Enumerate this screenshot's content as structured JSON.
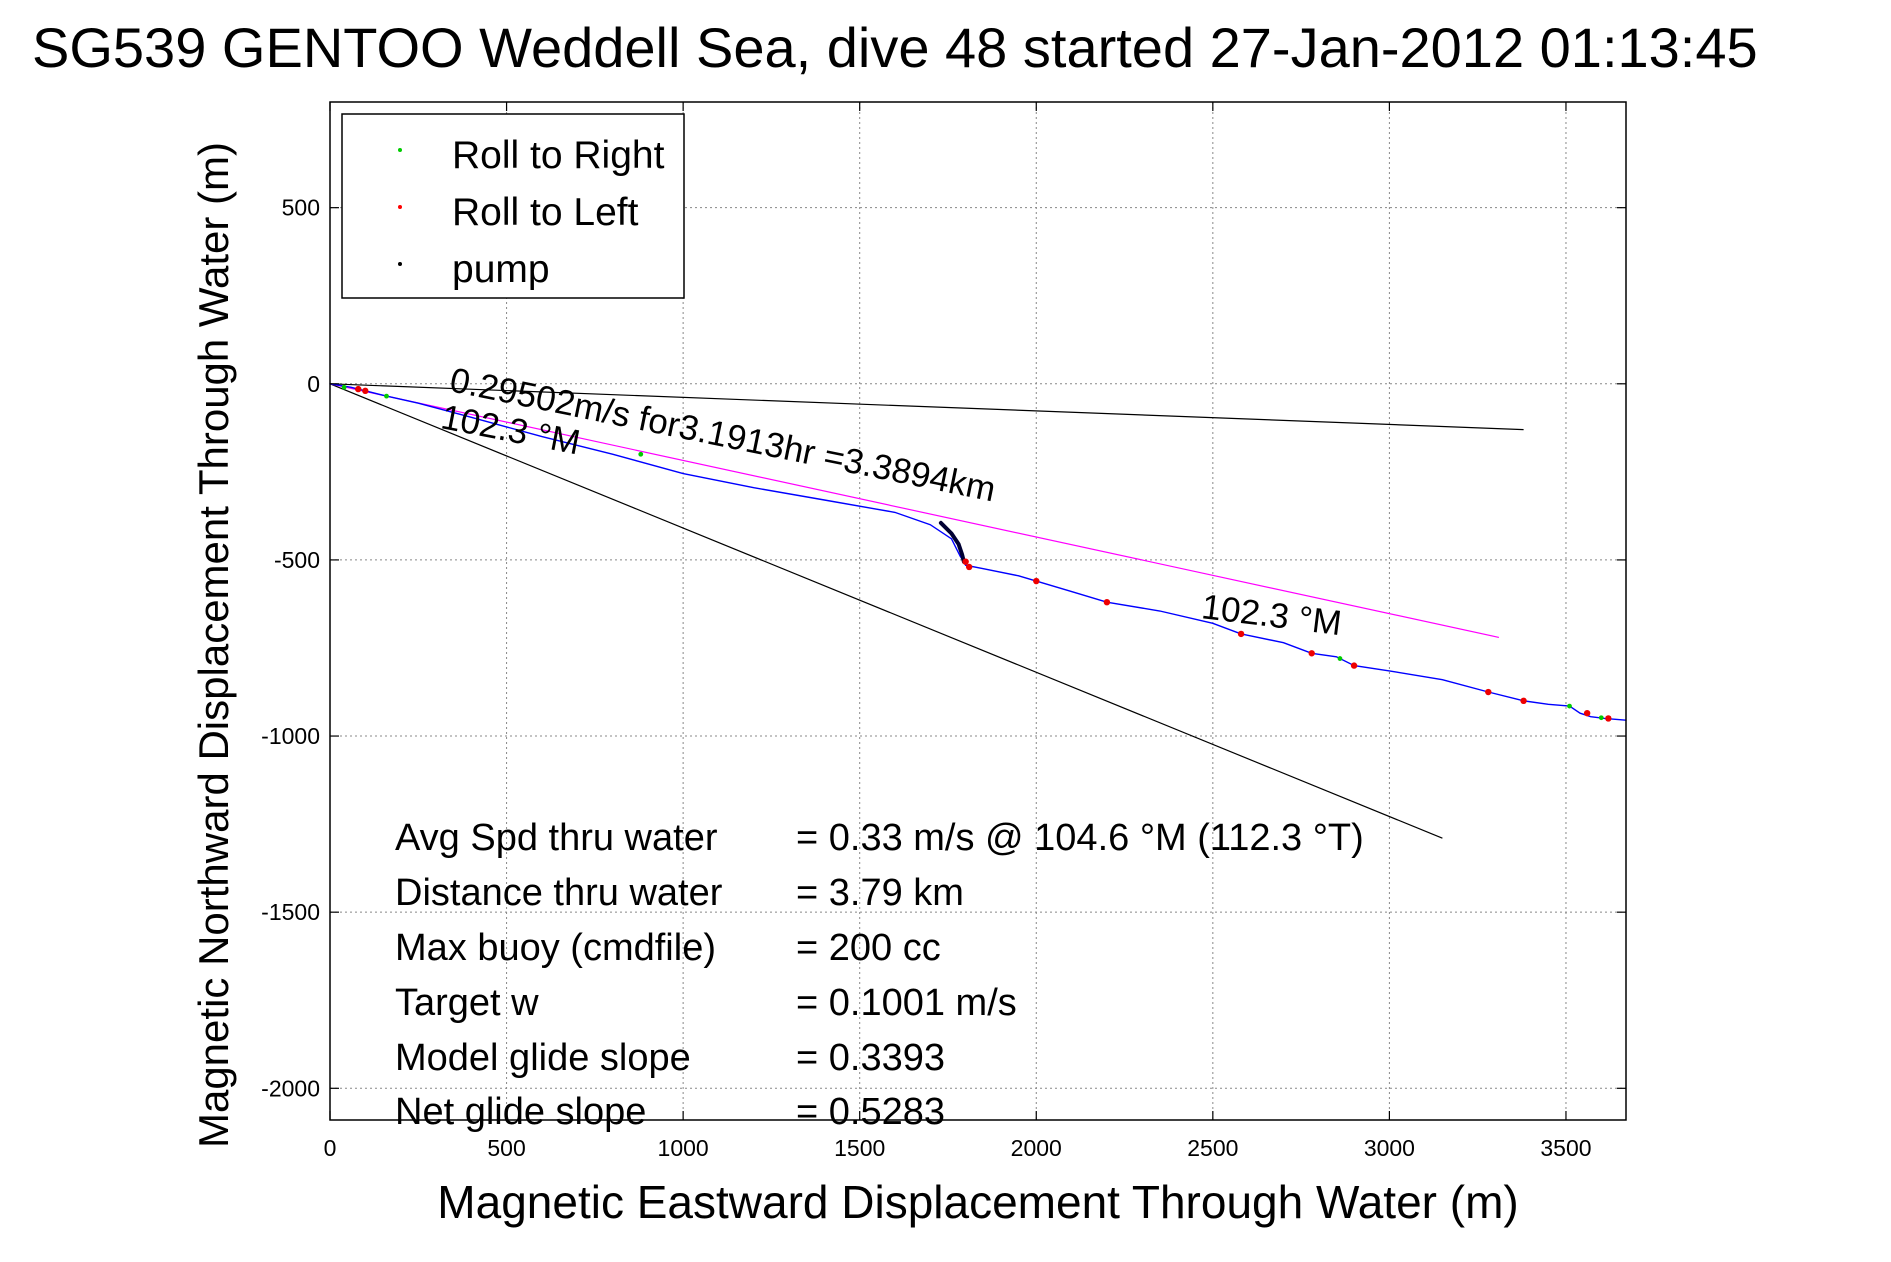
{
  "chart_data": {
    "type": "line",
    "title": "SG539 GENTOO Weddell Sea, dive 48 started 27-Jan-2012 01:13:45",
    "xlabel": "Magnetic Eastward Displacement Through Water (m)",
    "ylabel": "Magnetic Northward Displacement Through Water (m)",
    "xlim": [
      0,
      3670
    ],
    "ylim": [
      -2090,
      800
    ],
    "xticks": [
      0,
      500,
      1000,
      1500,
      2000,
      2500,
      3000,
      3500
    ],
    "yticks": [
      500,
      0,
      -500,
      -1000,
      -1500,
      -2000
    ],
    "xtick_labels": [
      "0",
      "500",
      "1000",
      "1500",
      "2000",
      "2500",
      "3000",
      "3500"
    ],
    "ytick_labels": [
      "500",
      "0",
      "-500",
      "-1000",
      "-1500",
      "-2000"
    ],
    "grid": true,
    "legend": {
      "placement": "top-left",
      "entries": [
        {
          "label": "Roll to Right",
          "color": "#00cc00"
        },
        {
          "label": "Roll to Left",
          "color": "#ff0000"
        },
        {
          "label": "pump",
          "color": "#000000"
        }
      ]
    },
    "series": [
      {
        "kind": "track",
        "color": "#0000ff",
        "x": [
          0,
          60,
          100,
          160,
          250,
          400,
          600,
          800,
          1000,
          1200,
          1400,
          1600,
          1700,
          1760,
          1775,
          1785,
          1795,
          1800,
          1850,
          1950,
          2000,
          2100,
          2200,
          2350,
          2500,
          2580,
          2700,
          2780,
          2850,
          2900,
          3000,
          3150,
          3280,
          3380,
          3450,
          3510,
          3540,
          3570,
          3610,
          3670
        ],
        "y": [
          0,
          -10,
          -20,
          -35,
          -55,
          -95,
          -150,
          -200,
          -255,
          -295,
          -330,
          -365,
          -400,
          -440,
          -470,
          -490,
          -505,
          -515,
          -525,
          -545,
          -560,
          -590,
          -620,
          -645,
          -680,
          -710,
          -735,
          -765,
          -775,
          -800,
          -815,
          -840,
          -875,
          -900,
          -910,
          -915,
          -935,
          -945,
          -950,
          -955
        ]
      },
      {
        "kind": "pump-segment",
        "color": "#000033",
        "x": [
          1730,
          1760,
          1780,
          1790,
          1795
        ],
        "y": [
          -395,
          -425,
          -455,
          -485,
          -505
        ]
      }
    ],
    "markers": {
      "roll_to_right": {
        "x": [
          40,
          160,
          880,
          2860,
          3510,
          3600
        ],
        "y": [
          -10,
          -35,
          -200,
          -780,
          -915,
          -948
        ]
      },
      "roll_to_left": {
        "x": [
          80,
          100,
          1800,
          1810,
          2000,
          2200,
          2580,
          2780,
          2900,
          3280,
          3380,
          3560,
          3620
        ],
        "y": [
          -15,
          -20,
          -505,
          -520,
          -560,
          -620,
          -710,
          -765,
          -800,
          -875,
          -900,
          -935,
          -950
        ]
      }
    },
    "reference_lines": [
      {
        "color": "#000000",
        "x": [
          0,
          3380
        ],
        "y": [
          0,
          -130
        ]
      },
      {
        "color": "#000000",
        "x": [
          0,
          3150
        ],
        "y": [
          0,
          -1290
        ]
      },
      {
        "color": "#ff00ff",
        "x": [
          0,
          3310
        ],
        "y": [
          0,
          -720
        ]
      }
    ],
    "annotations": [
      {
        "text": "0.29502m/s for3.1913hr =3.3894km",
        "x": 335,
        "y": -20,
        "rotation_deg": 11.5
      },
      {
        "text": "102.3 °M",
        "x": 310,
        "y": -125,
        "rotation_deg": 11
      },
      {
        "text": "102.3 °M",
        "x": 2465,
        "y": -665,
        "rotation_deg": 7
      }
    ],
    "stats": [
      {
        "label": "Avg Spd thru water",
        "value": "=  0.33 m/s @ 104.6 °M (112.3 °T)"
      },
      {
        "label": "Distance thru water",
        "value": "=  3.79 km"
      },
      {
        "label": "Max buoy (cmdfile)",
        "value": "= 200 cc"
      },
      {
        "label": "Target w",
        "value": "= 0.1001 m/s"
      },
      {
        "label": "Model glide slope",
        "value": "= 0.3393"
      },
      {
        "label": "Net glide slope",
        "value": "= 0.5283"
      }
    ]
  }
}
